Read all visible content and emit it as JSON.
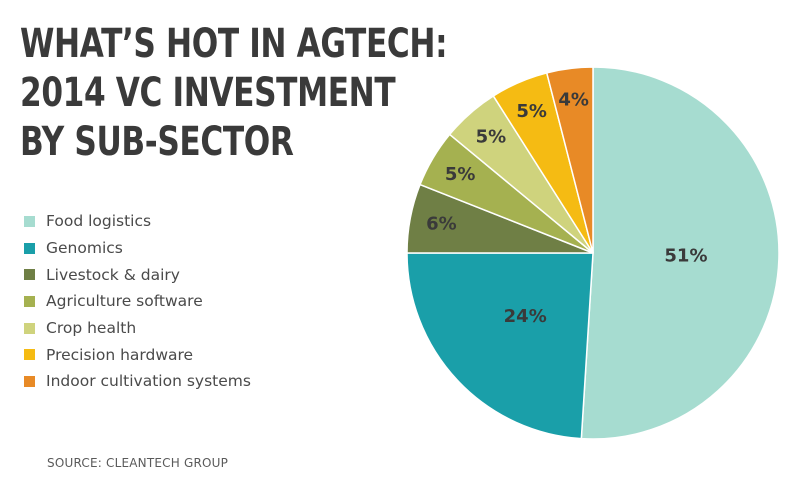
{
  "chart_data": {
    "type": "pie",
    "title_lines": [
      "WHAT’S HOT IN AGTECH:",
      "2014 VC INVESTMENT",
      "BY SUB-SECTOR"
    ],
    "slices": [
      {
        "label": "Food logistics",
        "value": 51,
        "display": "51%",
        "color": "#a6dcd0"
      },
      {
        "label": "Genomics",
        "value": 24,
        "display": "24%",
        "color": "#1a9fa9"
      },
      {
        "label": "Livestock & dairy",
        "value": 6,
        "display": "6%",
        "color": "#6f7f45"
      },
      {
        "label": "Agriculture software",
        "value": 5,
        "display": "5%",
        "color": "#a5b150"
      },
      {
        "label": "Crop health",
        "value": 5,
        "display": "5%",
        "color": "#cfd37d"
      },
      {
        "label": "Precision hardware",
        "value": 5,
        "display": "5%",
        "color": "#f5bb13"
      },
      {
        "label": "Indoor cultivation systems",
        "value": 4,
        "display": "4%",
        "color": "#e88a26"
      }
    ],
    "start": "12 o'clock",
    "direction": "clockwise",
    "legend_position": "left"
  },
  "source": "SOURCE: CLEANTECH GROUP"
}
